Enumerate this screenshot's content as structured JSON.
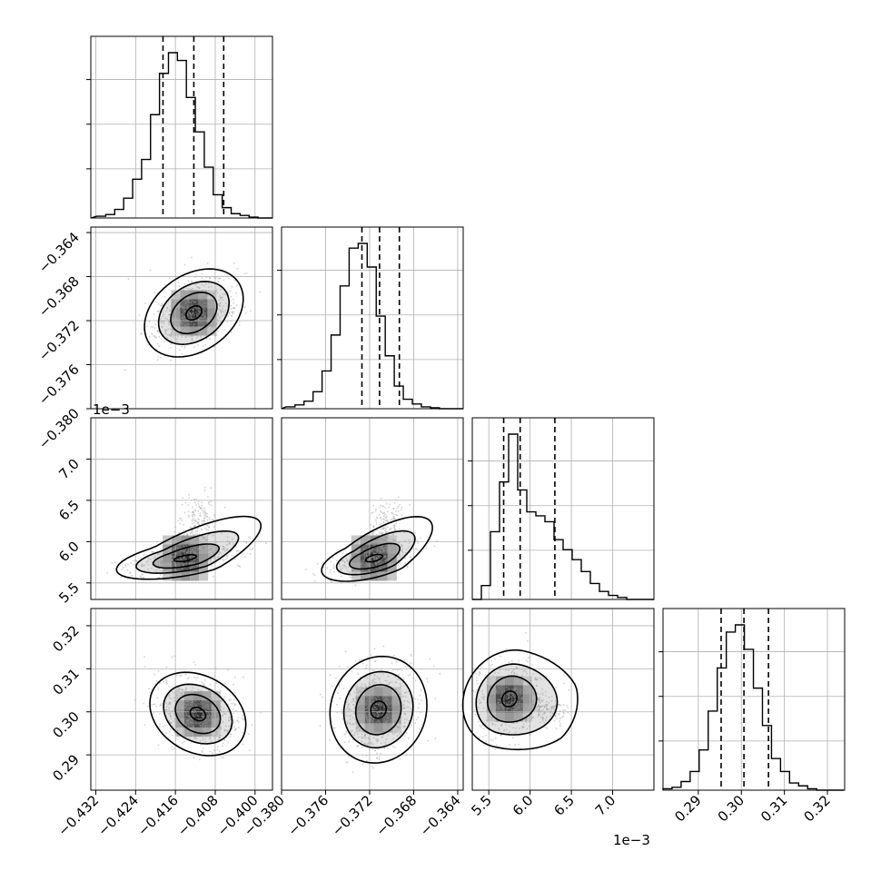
{
  "chart_data": {
    "type": "corner",
    "parameters": [
      {
        "index": 0,
        "median": -0.4123,
        "q16": -0.4185,
        "q84": -0.4063,
        "ticks": [
          -0.432,
          -0.424,
          -0.416,
          -0.408,
          -0.4
        ],
        "tick_labels": [
          "−0.432",
          "−0.424",
          "−0.416",
          "−0.408",
          "−0.400"
        ],
        "range": [
          -0.433,
          -0.3965
        ],
        "offset": ""
      },
      {
        "index": 1,
        "median": -0.3711,
        "q16": -0.3727,
        "q84": -0.3693,
        "ticks": [
          -0.38,
          -0.376,
          -0.372,
          -0.368,
          -0.364
        ],
        "tick_labels": [
          "−0.380",
          "−0.376",
          "−0.372",
          "−0.368",
          "−0.364"
        ],
        "range": [
          -0.38,
          -0.3635
        ],
        "offset": ""
      },
      {
        "index": 2,
        "median": 5.88,
        "q16": 5.68,
        "q84": 6.3,
        "ticks": [
          5.5,
          6.0,
          6.5,
          7.0
        ],
        "tick_labels": [
          "5.5",
          "6.0",
          "6.5",
          "7.0"
        ],
        "range": [
          5.3,
          7.5
        ],
        "offset": "1e−3"
      },
      {
        "index": 3,
        "median": 0.3006,
        "q16": 0.2953,
        "q84": 0.3063,
        "ticks": [
          0.29,
          0.3,
          0.31,
          0.32
        ],
        "tick_labels": [
          "0.29",
          "0.30",
          "0.31",
          "0.32"
        ],
        "range": [
          0.2818,
          0.324
        ],
        "offset": ""
      }
    ],
    "histograms": [
      {
        "param": 0,
        "edges_start": -0.4318,
        "bin_width": 0.0018,
        "counts": [
          2,
          4,
          10,
          23,
          45,
          68,
          120,
          168,
          192,
          183,
          140,
          100,
          59,
          27,
          12,
          5,
          3,
          1,
          0,
          0
        ]
      },
      {
        "param": 1,
        "edges_start": -0.3796,
        "bin_width": 0.00082,
        "counts": [
          2,
          4,
          8,
          18,
          40,
          78,
          130,
          170,
          175,
          150,
          98,
          56,
          24,
          10,
          5,
          2,
          1,
          0,
          0,
          0
        ]
      },
      {
        "param": 2,
        "edges_start": 5.3,
        "bin_width": 0.11,
        "counts": [
          0,
          7,
          34,
          59,
          83,
          55,
          44,
          42,
          39,
          30,
          25,
          20,
          14,
          8,
          4,
          2,
          1,
          0,
          0,
          0
        ]
      },
      {
        "param": 3,
        "edges_start": 0.2818,
        "bin_width": 0.0021,
        "counts": [
          1,
          2,
          6,
          13,
          28,
          55,
          85,
          110,
          115,
          98,
          71,
          45,
          22,
          13,
          5,
          3,
          1,
          0,
          0,
          0
        ]
      }
    ],
    "pairs": [
      {
        "x_param": 0,
        "y_param": 1,
        "peak": [
          -0.4123,
          -0.3713
        ]
      },
      {
        "x_param": 0,
        "y_param": 2,
        "peak": [
          -0.414,
          5.8
        ]
      },
      {
        "x_param": 1,
        "y_param": 2,
        "peak": [
          -0.3716,
          5.8
        ]
      },
      {
        "x_param": 0,
        "y_param": 3,
        "peak": [
          -0.4115,
          0.2995
        ]
      },
      {
        "x_param": 1,
        "y_param": 3,
        "peak": [
          -0.3712,
          0.3005
        ]
      },
      {
        "x_param": 2,
        "y_param": 3,
        "peak": [
          5.75,
          0.303
        ]
      }
    ],
    "quantile_line_style": "dashed",
    "grid": true,
    "colors": {
      "line": "#000000",
      "grid": "#b0b0b0",
      "points": "#9a9a9a"
    }
  }
}
